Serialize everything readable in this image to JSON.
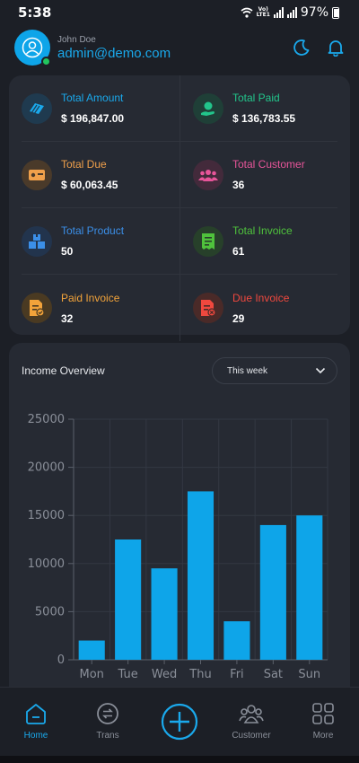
{
  "status_bar": {
    "time": "5:38",
    "network": "VoLTE1",
    "battery": "97%"
  },
  "header": {
    "name": "John Doe",
    "email": "admin@demo.com"
  },
  "stats": [
    {
      "label": "Total Amount",
      "value": "$ 196,847.00",
      "color": "#1aa9ec",
      "icon": "wallet-icon"
    },
    {
      "label": "Total Paid",
      "value": "$ 136,783.55",
      "color": "#22c58b",
      "icon": "money-hand-icon"
    },
    {
      "label": "Total Due",
      "value": "$ 60,063.45",
      "color": "#f0a04b",
      "icon": "card-icon"
    },
    {
      "label": "Total Customer",
      "value": "36",
      "color": "#e8559a",
      "icon": "users-icon"
    },
    {
      "label": "Total Product",
      "value": "50",
      "color": "#3b8fe8",
      "icon": "boxes-icon"
    },
    {
      "label": "Total Invoice",
      "value": "61",
      "color": "#4fc23c",
      "icon": "invoice-icon"
    },
    {
      "label": "Paid Invoice",
      "value": "32",
      "color": "#f2a33a",
      "icon": "paid-invoice-icon"
    },
    {
      "label": "Due Invoice",
      "value": "29",
      "color": "#f0483e",
      "icon": "due-invoice-icon"
    }
  ],
  "income": {
    "title": "Income Overview",
    "range": "This week"
  },
  "chart_data": {
    "type": "bar",
    "categories": [
      "Mon",
      "Tue",
      "Wed",
      "Thu",
      "Fri",
      "Sat",
      "Sun"
    ],
    "values": [
      2000,
      12500,
      9500,
      17500,
      4000,
      14000,
      15000
    ],
    "ylim": [
      0,
      25000
    ],
    "yticks": [
      "0",
      "5000",
      "10000",
      "15000",
      "20000",
      "25000"
    ],
    "grid": true,
    "bar_color": "#0ea5e9"
  },
  "bottom_nav": {
    "home": "Home",
    "trans": "Trans",
    "customer": "Customer",
    "more": "More"
  }
}
